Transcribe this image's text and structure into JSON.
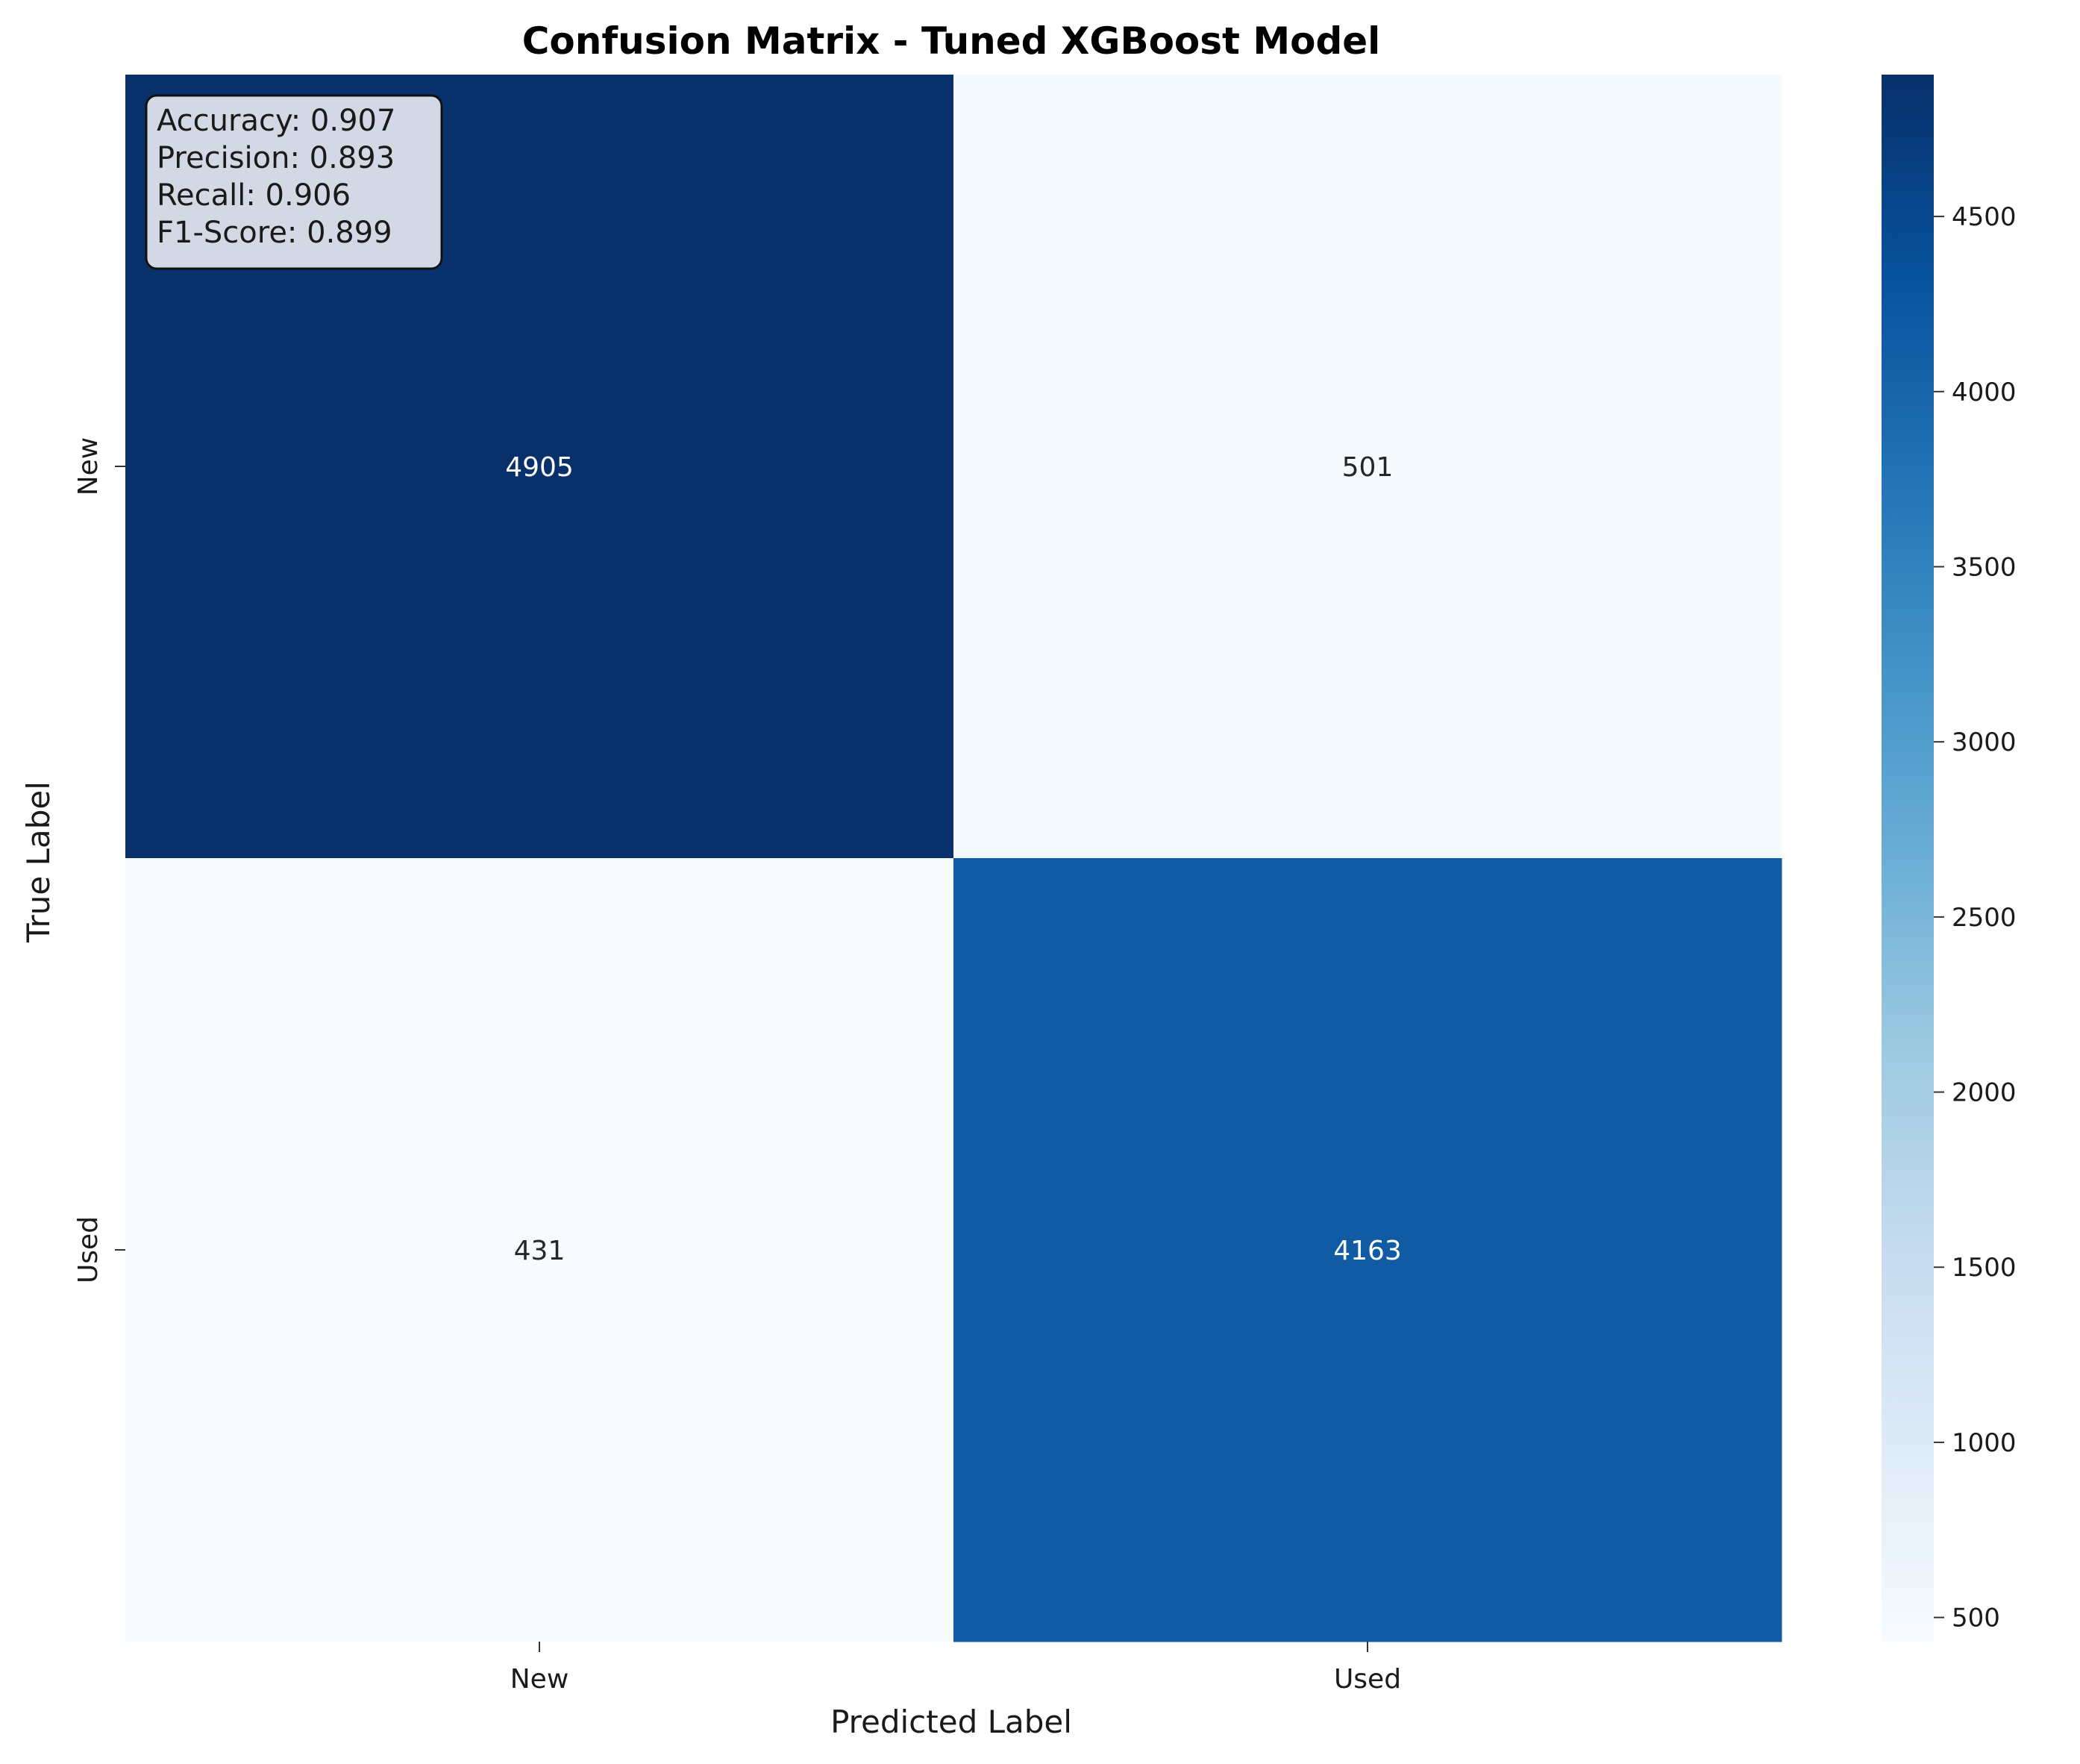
{
  "chart_data": {
    "type": "heatmap",
    "title": "Confusion Matrix - Tuned XGBoost Model",
    "xlabel": "Predicted Label",
    "ylabel": "True Label",
    "x_categories": [
      "New",
      "Used"
    ],
    "y_categories": [
      "New",
      "Used"
    ],
    "matrix": [
      [
        4905,
        501
      ],
      [
        431,
        4163
      ]
    ],
    "colormap": "Blues",
    "colorbar": {
      "range": [
        431,
        4905
      ],
      "ticks": [
        500,
        1000,
        1500,
        2000,
        2500,
        3000,
        3500,
        4000,
        4500
      ]
    },
    "metrics": [
      "Accuracy: 0.907",
      "Precision: 0.893",
      "Recall: 0.906",
      "F1-Score: 0.899"
    ]
  }
}
